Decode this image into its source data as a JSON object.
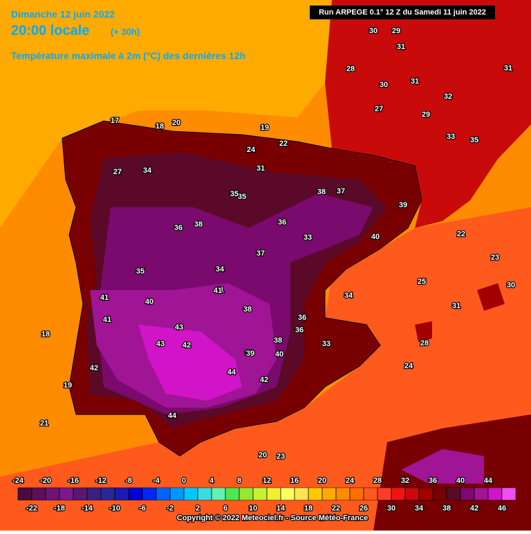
{
  "header": {
    "date": "Dimanche 12 juin 2022",
    "time": "20:00 locale",
    "lead": "(+ 30h)",
    "parameter": "Température maximale à 2m (°C) des dernières 12h",
    "run": "Run ARPEGE 0.1° 12 Z du Samedi 11 juin 2022"
  },
  "stations": [
    30,
    29,
    31,
    28,
    30,
    31,
    27,
    29,
    32,
    33,
    35,
    31,
    17,
    18,
    20,
    19,
    22,
    24,
    27,
    31,
    34,
    35,
    36,
    38,
    39,
    40,
    37,
    36,
    38,
    35,
    33,
    34,
    40,
    41,
    42,
    43,
    41,
    39,
    44,
    42,
    40,
    38,
    36,
    34,
    33,
    35,
    41,
    42,
    43,
    44,
    39,
    30,
    24,
    25,
    23,
    22,
    21,
    19,
    18,
    20,
    23,
    31,
    28,
    36,
    37,
    41,
    38
  ],
  "colorbar": {
    "ticks": [
      -24,
      -22,
      -20,
      -18,
      -16,
      -14,
      -12,
      -10,
      -8,
      -6,
      -4,
      -2,
      0,
      2,
      4,
      6,
      8,
      10,
      12,
      14,
      16,
      18,
      20,
      22,
      24,
      26,
      28,
      30,
      32,
      34,
      36,
      38,
      40,
      42,
      44,
      46
    ],
    "colors": [
      "#4b0a3c",
      "#5e0f5a",
      "#6d1478",
      "#7a1a8c",
      "#5a1870",
      "#3c2080",
      "#282896",
      "#1a1ab4",
      "#0000d2",
      "#0028f0",
      "#0064ff",
      "#0096ff",
      "#00c8ff",
      "#3cdcdc",
      "#64f0b4",
      "#50e650",
      "#96e632",
      "#c8f032",
      "#f0f032",
      "#ffff64",
      "#ffe650",
      "#ffc800",
      "#ffaa00",
      "#ff8c00",
      "#ff6e00",
      "#ff5a1e",
      "#ff3c28",
      "#f01414",
      "#c80a0a",
      "#a00000",
      "#780000",
      "#5a0a28",
      "#7a0a6e",
      "#a01496",
      "#d214c8",
      "#f050f0"
    ]
  },
  "footer": {
    "copyright": "Copyright © 2022 Meteociel.fr - Source Météo-France"
  }
}
